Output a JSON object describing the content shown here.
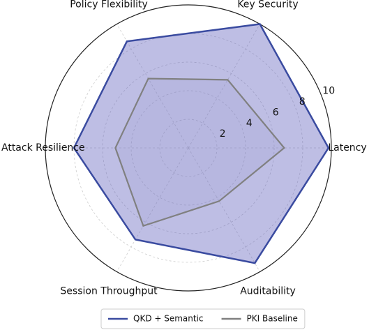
{
  "chart_data": {
    "type": "radar",
    "categories": [
      "Latency",
      "Key Security",
      "Policy Flexibility",
      "Attack Resilience",
      "Session Throughput",
      "Auditability"
    ],
    "series": [
      {
        "name": "QKD + Semantic",
        "color": "#3a4ba0",
        "values": [
          9.8,
          10,
          8.6,
          8,
          7.4,
          9.3
        ]
      },
      {
        "name": "PKI Baseline",
        "color": "#808080",
        "values": [
          6.7,
          5.5,
          5.6,
          5.1,
          6.3,
          4.3
        ]
      }
    ],
    "ylim": [
      0,
      10
    ],
    "yticks": [
      2,
      4,
      6,
      8,
      10
    ],
    "grid": true,
    "legend": "lower center"
  }
}
